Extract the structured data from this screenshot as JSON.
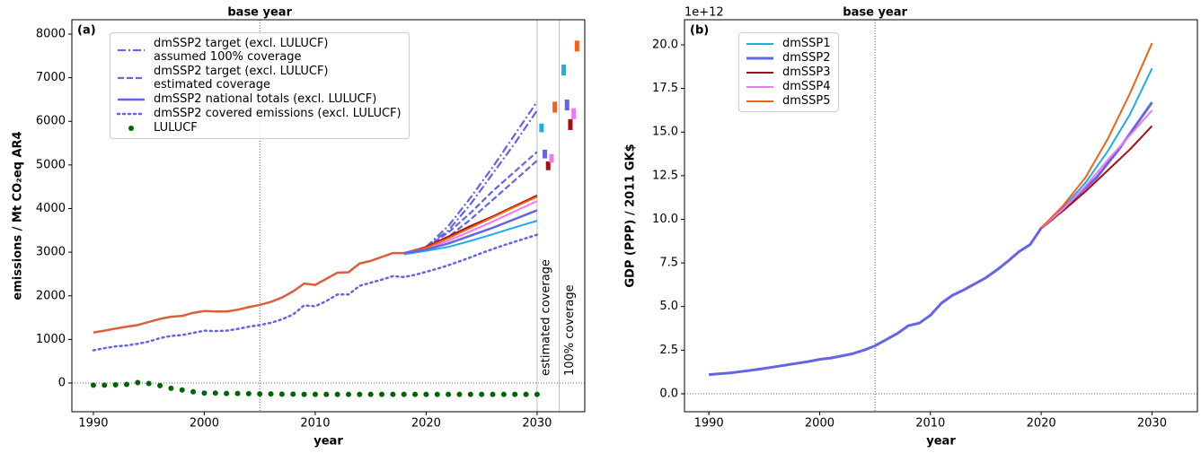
{
  "chart_data": [
    {
      "type": "line",
      "panel_label": "(a)",
      "xlabel": "year",
      "ylabel": "emissions / Mt CO₂eq AR4",
      "base_year": 2005,
      "base_year_label": "base year",
      "zero_line": true,
      "coverage_lines": [
        2030,
        2032
      ],
      "coverage_labels": [
        "estimated coverage",
        "100% coverage"
      ],
      "xlim": [
        1988.06,
        2034.3
      ],
      "ylim": [
        -658,
        8329
      ],
      "xticks": [
        1990,
        2000,
        2010,
        2020,
        2030
      ],
      "yticks": [
        0,
        1000,
        2000,
        3000,
        4000,
        5000,
        6000,
        7000,
        8000
      ],
      "series": [
        {
          "name": "dmSSP2 target (excl. LULUCF)\nassumed 100% coverage",
          "color": "#6464e6",
          "style": "dashdot",
          "width": 2.2,
          "x": [
            2020,
            2022,
            2024,
            2026,
            2028,
            2030
          ],
          "values": [
            3120,
            3600,
            4250,
            4950,
            5700,
            6450
          ]
        },
        {
          "color": "#6464e6",
          "style": "dashdot",
          "width": 2.2,
          "x": [
            2020,
            2022,
            2024,
            2026,
            2028,
            2030
          ],
          "values": [
            3120,
            3500,
            4100,
            4800,
            5500,
            6250
          ]
        },
        {
          "name": "dmSSP2 target (excl. LULUCF)\nestimated coverage",
          "color": "#6464e6",
          "style": "dashed",
          "width": 2.2,
          "x": [
            2020,
            2022,
            2024,
            2026,
            2028,
            2030
          ],
          "values": [
            3120,
            3450,
            3900,
            4400,
            4850,
            5300
          ]
        },
        {
          "color": "#6464e6",
          "style": "dashed",
          "width": 2.2,
          "x": [
            2020,
            2022,
            2024,
            2026,
            2028,
            2030
          ],
          "values": [
            3120,
            3350,
            3750,
            4200,
            4650,
            5100
          ]
        },
        {
          "color": "#1eaee6",
          "style": "solid",
          "width": 2,
          "x": [
            2018,
            2020,
            2022,
            2024,
            2026,
            2028,
            2030
          ],
          "values": [
            2950,
            3030,
            3120,
            3260,
            3410,
            3570,
            3720
          ]
        },
        {
          "color": "#a50f0f",
          "style": "solid",
          "width": 2,
          "x": [
            2018,
            2020,
            2022,
            2024,
            2026,
            2028,
            2030
          ],
          "values": [
            2980,
            3120,
            3360,
            3600,
            3820,
            4060,
            4300
          ]
        },
        {
          "color": "#f078f0",
          "style": "solid",
          "width": 2,
          "x": [
            2018,
            2020,
            2022,
            2024,
            2026,
            2028,
            2030
          ],
          "values": [
            2980,
            3080,
            3260,
            3480,
            3700,
            3940,
            4170
          ]
        },
        {
          "color": "#f06414",
          "style": "solid",
          "width": 2,
          "x": [
            2018,
            2020,
            2022,
            2024,
            2026,
            2028,
            2030
          ],
          "values": [
            2980,
            3100,
            3320,
            3560,
            3800,
            4040,
            4270
          ]
        },
        {
          "name": "dmSSP2 national totals (excl. LULUCF)",
          "color": "#6464e6",
          "style": "solid",
          "width": 2.5,
          "x": [
            2018,
            2020,
            2022,
            2024,
            2026,
            2028,
            2030
          ],
          "values": [
            2980,
            3060,
            3200,
            3380,
            3560,
            3760,
            3960
          ]
        },
        {
          "color": "#d9603b",
          "style": "solid",
          "width": 2.5,
          "x": [
            1990,
            1991,
            1992,
            1993,
            1994,
            1995,
            1996,
            1997,
            1998,
            1999,
            2000,
            2001,
            2002,
            2003,
            2004,
            2005,
            2006,
            2007,
            2008,
            2009,
            2010,
            2011,
            2012,
            2013,
            2014,
            2015,
            2016,
            2017,
            2018
          ],
          "values": [
            1160,
            1200,
            1250,
            1290,
            1330,
            1400,
            1470,
            1520,
            1540,
            1610,
            1650,
            1640,
            1640,
            1680,
            1740,
            1790,
            1860,
            1960,
            2100,
            2280,
            2250,
            2390,
            2530,
            2540,
            2740,
            2800,
            2890,
            2980,
            2980
          ]
        },
        {
          "name": "dmSSP2 covered emissions (excl. LULUCF)",
          "color": "#6464e6",
          "style": "dotted",
          "width": 2.5,
          "x": [
            1990,
            1991,
            1992,
            1993,
            1994,
            1995,
            1996,
            1997,
            1998,
            1999,
            2000,
            2001,
            2002,
            2003,
            2004,
            2005,
            2006,
            2007,
            2008,
            2009,
            2010,
            2011,
            2012,
            2013,
            2014,
            2015,
            2016,
            2017,
            2018,
            2019,
            2020,
            2021,
            2022,
            2023,
            2024,
            2025,
            2026,
            2027,
            2028,
            2029,
            2030
          ],
          "values": [
            750,
            800,
            840,
            860,
            900,
            950,
            1030,
            1080,
            1100,
            1150,
            1200,
            1190,
            1200,
            1240,
            1290,
            1330,
            1380,
            1460,
            1570,
            1780,
            1760,
            1880,
            2030,
            2030,
            2230,
            2300,
            2370,
            2450,
            2430,
            2480,
            2550,
            2620,
            2700,
            2790,
            2880,
            2980,
            3070,
            3160,
            3240,
            3320,
            3400
          ]
        },
        {
          "name": "LULUCF",
          "color": "#006400",
          "style": "dots",
          "x": [
            1990,
            1991,
            1992,
            1993,
            1994,
            1995,
            1996,
            1997,
            1998,
            1999,
            2000,
            2001,
            2002,
            2003,
            2004,
            2005,
            2006,
            2007,
            2008,
            2009,
            2010,
            2011,
            2012,
            2013,
            2014,
            2015,
            2016,
            2017,
            2018,
            2019,
            2020,
            2021,
            2022,
            2023,
            2024,
            2025,
            2026,
            2027,
            2028,
            2029,
            2030
          ],
          "values": [
            -50,
            -50,
            -40,
            -30,
            10,
            -10,
            -60,
            -120,
            -160,
            -200,
            -230,
            -230,
            -240,
            -240,
            -245,
            -250,
            -250,
            -255,
            -255,
            -260,
            -260,
            -260,
            -260,
            -260,
            -260,
            -260,
            -260,
            -260,
            -260,
            -260,
            -260,
            -260,
            -260,
            -260,
            -260,
            -260,
            -260,
            -260,
            -260,
            -260,
            -260
          ]
        }
      ],
      "target_ranges": [
        {
          "color": "#1eaee6",
          "x": 2030.4,
          "low": 5750,
          "high": 5950
        },
        {
          "color": "#6464e6",
          "x": 2030.7,
          "low": 5150,
          "high": 5350
        },
        {
          "color": "#a50f0f",
          "x": 2031.0,
          "low": 4880,
          "high": 5080
        },
        {
          "color": "#f078f0",
          "x": 2031.3,
          "low": 5050,
          "high": 5250
        },
        {
          "color": "#f06414",
          "x": 2031.6,
          "low": 6200,
          "high": 6450
        },
        {
          "color": "#1eaee6",
          "x": 2032.4,
          "low": 7050,
          "high": 7300
        },
        {
          "color": "#6464e6",
          "x": 2032.7,
          "low": 6250,
          "high": 6500
        },
        {
          "color": "#a50f0f",
          "x": 2033.0,
          "low": 5800,
          "high": 6050
        },
        {
          "color": "#f078f0",
          "x": 2033.3,
          "low": 6050,
          "high": 6300
        },
        {
          "color": "#f06414",
          "x": 2033.6,
          "low": 7600,
          "high": 7850
        }
      ]
    },
    {
      "type": "line",
      "panel_label": "(b)",
      "xlabel": "year",
      "ylabel": "GDP (PPP) / 2011 GK$",
      "y_offset_label": "1e+12",
      "base_year": 2005,
      "base_year_label": "base year",
      "zero_line": true,
      "xlim": [
        1987.8,
        2034.1
      ],
      "ylim": [
        -1.03,
        21.44
      ],
      "xticks": [
        1990,
        2000,
        2010,
        2020,
        2030
      ],
      "yticks": [
        {
          "value": 0,
          "label": "0.0"
        },
        {
          "value": 2.5,
          "label": "2.5"
        },
        {
          "value": 5,
          "label": "5.0"
        },
        {
          "value": 7.5,
          "label": "7.5"
        },
        {
          "value": 10,
          "label": "10.0"
        },
        {
          "value": 12.5,
          "label": "12.5"
        },
        {
          "value": 15,
          "label": "15.0"
        },
        {
          "value": 17.5,
          "label": "17.5"
        },
        {
          "value": 20,
          "label": "20.0"
        }
      ],
      "series": [
        {
          "name": "dmSSP1",
          "color": "#1eaee6",
          "style": "solid",
          "width": 2,
          "x": [
            2020,
            2022,
            2024,
            2026,
            2028,
            2030
          ],
          "values": [
            9.5,
            10.7,
            12.1,
            13.9,
            16.0,
            18.65
          ]
        },
        {
          "name": "dmSSP2",
          "color": "#6464e6",
          "style": "solid",
          "width": 3,
          "x": [
            1990,
            1991,
            1992,
            1993,
            1994,
            1995,
            1996,
            1997,
            1998,
            1999,
            2000,
            2001,
            2002,
            2003,
            2004,
            2005,
            2006,
            2007,
            2008,
            2009,
            2010,
            2011,
            2012,
            2013,
            2014,
            2015,
            2016,
            2017,
            2018,
            2019,
            2020,
            2021,
            2022,
            2023,
            2024,
            2025,
            2026,
            2027,
            2028,
            2029,
            2030
          ],
          "values": [
            1.1,
            1.15,
            1.2,
            1.28,
            1.36,
            1.45,
            1.55,
            1.65,
            1.75,
            1.85,
            1.97,
            2.05,
            2.17,
            2.3,
            2.5,
            2.75,
            3.1,
            3.45,
            3.9,
            4.05,
            4.5,
            5.2,
            5.65,
            5.95,
            6.3,
            6.65,
            7.1,
            7.6,
            8.15,
            8.55,
            9.5,
            10.0,
            10.6,
            11.2,
            11.8,
            12.4,
            13.2,
            14.0,
            14.9,
            15.8,
            16.7
          ]
        },
        {
          "name": "dmSSP3",
          "color": "#a50f0f",
          "style": "solid",
          "width": 2,
          "x": [
            2020,
            2022,
            2024,
            2026,
            2028,
            2030
          ],
          "values": [
            9.5,
            10.5,
            11.6,
            12.8,
            14.0,
            15.35
          ]
        },
        {
          "name": "dmSSP4",
          "color": "#f078f0",
          "style": "solid",
          "width": 2,
          "x": [
            2020,
            2022,
            2024,
            2026,
            2028,
            2030
          ],
          "values": [
            9.5,
            10.6,
            11.9,
            13.4,
            14.8,
            16.25
          ]
        },
        {
          "name": "dmSSP5",
          "color": "#f06414",
          "style": "solid",
          "width": 2,
          "x": [
            2020,
            2022,
            2024,
            2026,
            2028,
            2030
          ],
          "values": [
            9.5,
            10.8,
            12.4,
            14.6,
            17.2,
            20.1
          ]
        }
      ]
    }
  ]
}
